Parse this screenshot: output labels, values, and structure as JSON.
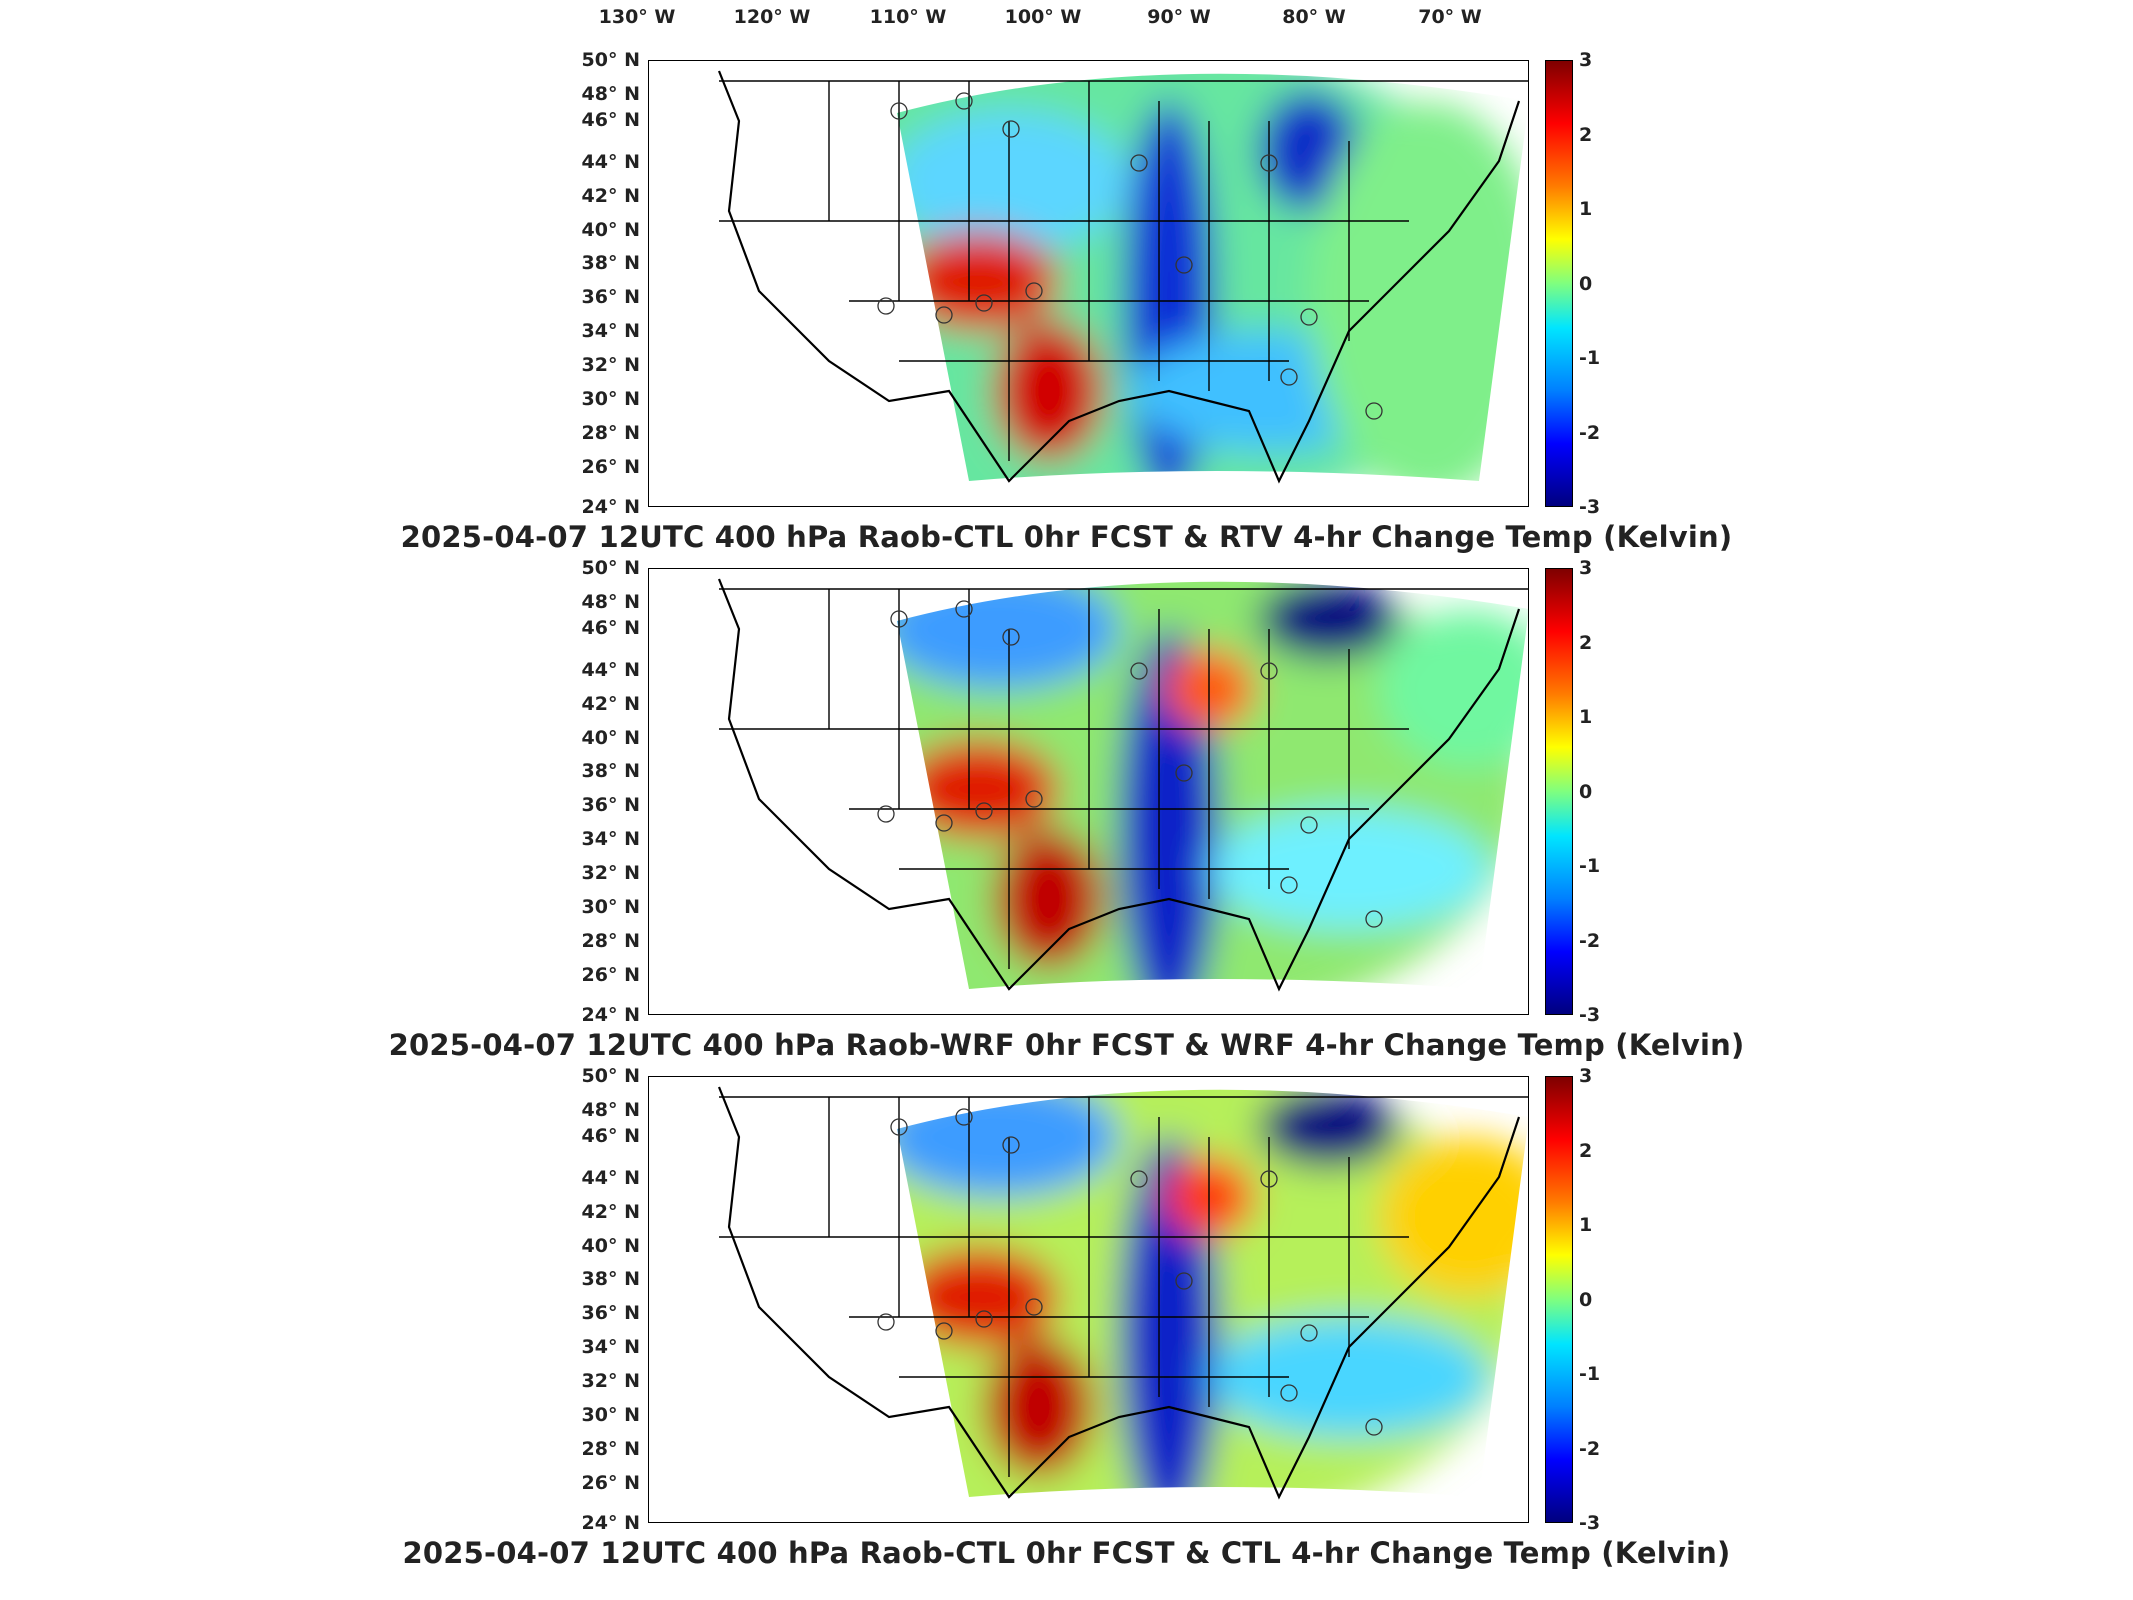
{
  "lon_labels": [
    "130° W",
    "120° W",
    "110° W",
    "100° W",
    "90° W",
    "80° W",
    "70° W"
  ],
  "lat_labels": [
    "50° N",
    "48° N",
    "46° N",
    "44° N",
    "42° N",
    "40° N",
    "38° N",
    "36° N",
    "34° N",
    "32° N",
    "30° N",
    "28° N",
    "26° N",
    "24° N"
  ],
  "colorbar_ticks": [
    "3",
    "2",
    "1",
    "0",
    "-1",
    "-2",
    "-3"
  ],
  "colorbar_range": [
    -3,
    3
  ],
  "colorscale": "jet",
  "panels": [
    {
      "title": "2025-04-07 12UTC 400 hPa Raob-CTL 0hr FCST & RTV 4-hr Change Temp (Kelvin)"
    },
    {
      "title": "2025-04-07 12UTC 400 hPa Raob-WRF 0hr FCST & WRF 4-hr Change Temp (Kelvin)"
    },
    {
      "title": "2025-04-07 12UTC 400 hPa Raob-CTL 0hr FCST & CTL 4-hr Change Temp (Kelvin)"
    }
  ]
}
